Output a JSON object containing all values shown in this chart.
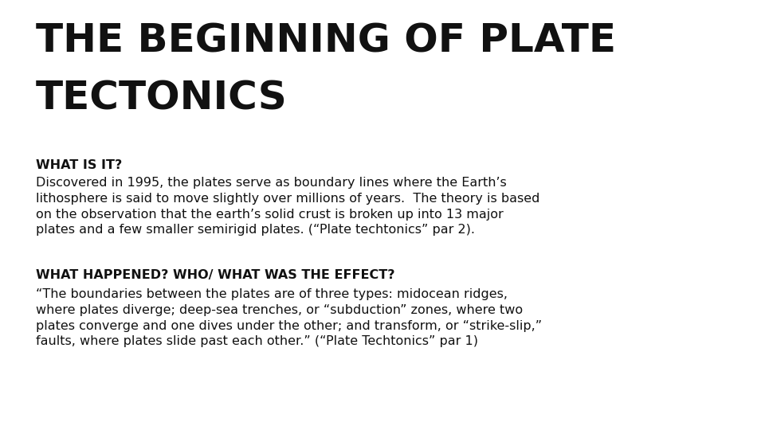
{
  "background_color": "#ffffff",
  "title_line1": "THE BEGINNING OF PLATE",
  "title_line2": "TECTONICS",
  "title_color": "#111111",
  "title_fontsize": 36,
  "title_font_weight": "bold",
  "title_font_stretch": "condensed",
  "accent_bar_color": "#29abe2",
  "section1_heading": "WHAT IS IT?",
  "section1_heading_fontsize": 11.5,
  "section1_body": "Discovered in 1995, the plates serve as boundary lines where the Earth’s\nlithosphere is said to move slightly over millions of years.  The theory is based\non the observation that the earth’s solid crust is broken up into 13 major\nplates and a few smaller semirigid plates. (“Plate techtonics” par 2).",
  "section1_body_fontsize": 11.5,
  "section2_heading": "WHAT HAPPENED? WHO/ WHAT WAS THE EFFECT?",
  "section2_heading_fontsize": 11.5,
  "section2_body": "“The boundaries between the plates are of three types: midocean ridges,\nwhere plates diverge; deep-sea trenches, or “subduction” zones, where two\nplates converge and one dives under the other; and transform, or “strike-slip,”\nfaults, where plates slide past each other.” (“Plate Techtonics” par 1)",
  "section2_body_fontsize": 11.5,
  "text_color": "#111111"
}
